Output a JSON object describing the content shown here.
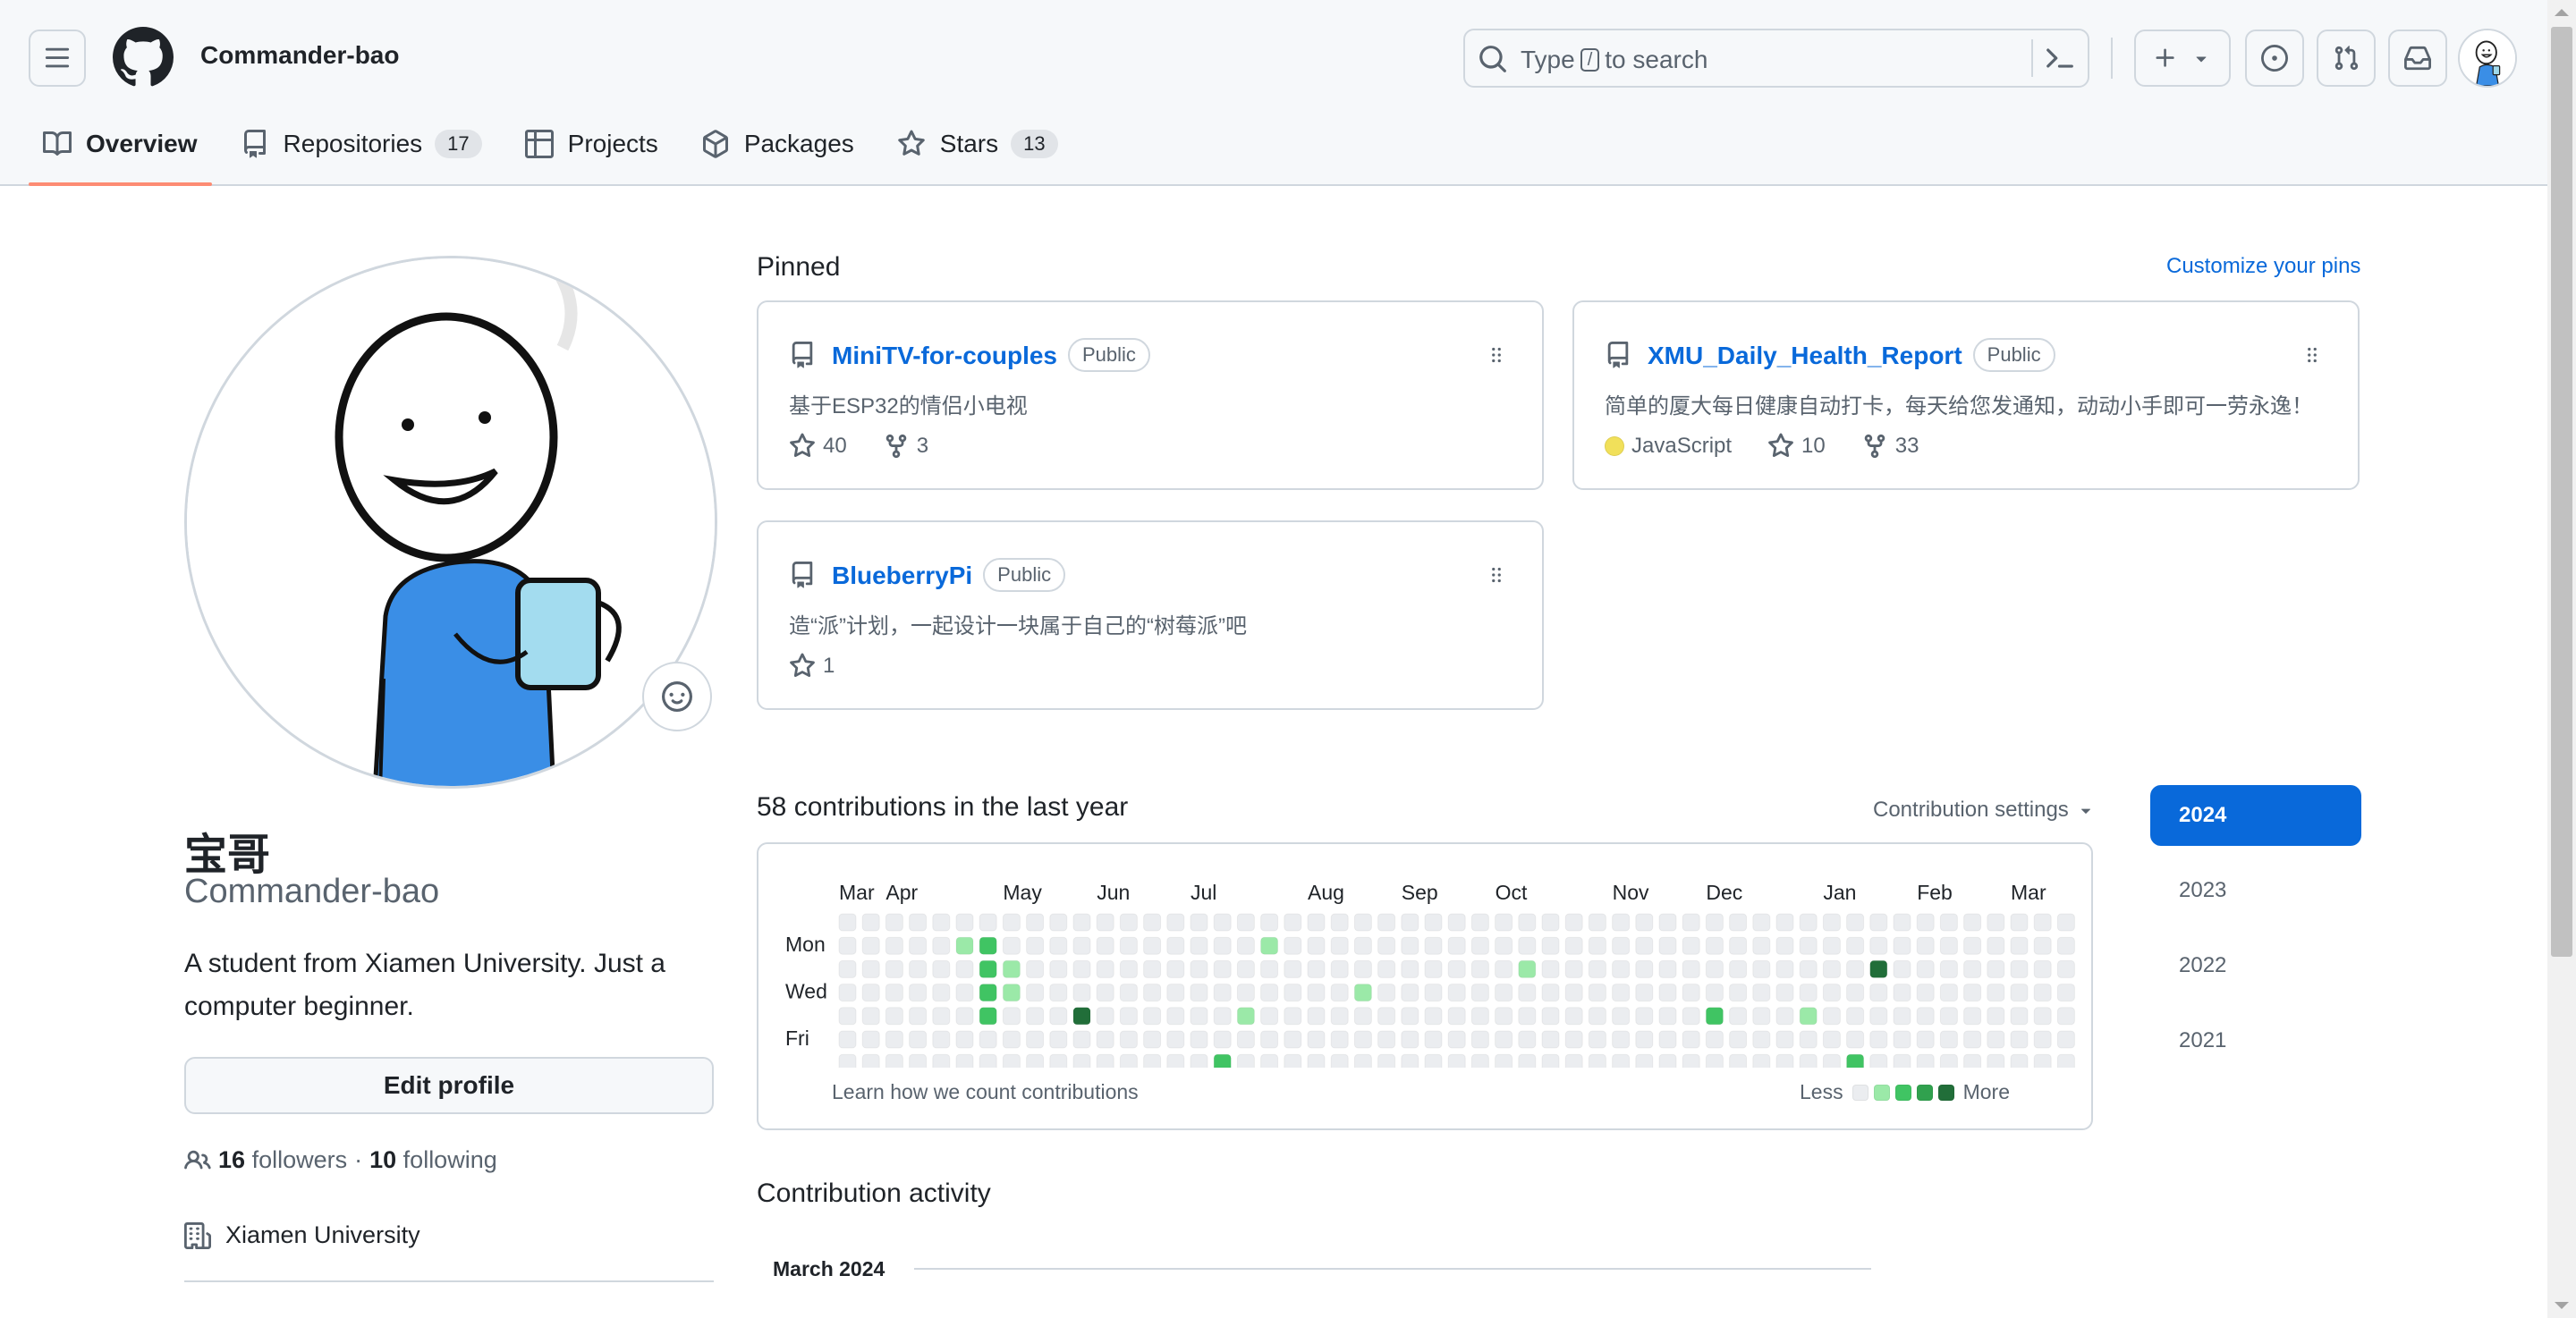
{
  "header": {
    "username": "Commander-bao",
    "search_text_before": "Type",
    "search_key": "/",
    "search_text_after": "to search"
  },
  "tabs": [
    {
      "label": "Overview",
      "icon": "book-icon",
      "count": ""
    },
    {
      "label": "Repositories",
      "icon": "repo-icon",
      "count": "17"
    },
    {
      "label": "Projects",
      "icon": "table-icon",
      "count": ""
    },
    {
      "label": "Packages",
      "icon": "package-icon",
      "count": ""
    },
    {
      "label": "Stars",
      "icon": "star-icon",
      "count": "13"
    }
  ],
  "profile": {
    "name": "宝哥",
    "login": "Commander-bao",
    "bio": "A student from Xiamen University. Just a computer beginner.",
    "edit_label": "Edit profile",
    "followers_count": "16",
    "followers_label": "followers",
    "separator": "·",
    "following_count": "10",
    "following_label": "following",
    "organization": "Xiamen University"
  },
  "pinned": {
    "title": "Pinned",
    "customize_label": "Customize your pins",
    "repos": [
      {
        "name": "MiniTV-for-couples",
        "visibility": "Public",
        "description": "基于ESP32的情侣小电视",
        "language": "",
        "stars": "40",
        "forks": "3"
      },
      {
        "name": "XMU_Daily_Health_Report",
        "visibility": "Public",
        "description": "简单的厦大每日健康自动打卡，每天给您发通知，动动小手即可一劳永逸！",
        "language": "JavaScript",
        "language_color": "#f1e05a",
        "stars": "10",
        "forks": "33"
      },
      {
        "name": "BlueberryPi",
        "visibility": "Public",
        "description": "造“派”计划，一起设计一块属于自己的“树莓派”吧",
        "language": "",
        "stars": "1",
        "forks": ""
      }
    ]
  },
  "contributions": {
    "title": "58 contributions in the last year",
    "settings_label": "Contribution settings",
    "months": [
      "Mar",
      "Apr",
      "May",
      "Jun",
      "Jul",
      "Aug",
      "Sep",
      "Oct",
      "Nov",
      "Dec",
      "Jan",
      "Feb",
      "Mar"
    ],
    "month_weeks": [
      0,
      2,
      7,
      11,
      15,
      20,
      24,
      28,
      33,
      37,
      42,
      46,
      50
    ],
    "day_labels": [
      "Mon",
      "Wed",
      "Fri"
    ],
    "learn_label": "Learn how we count contributions",
    "less_label": "Less",
    "more_label": "More",
    "level_colors": [
      "#ebedf0",
      "#9be9a8",
      "#40c463",
      "#30a14e",
      "#216e39"
    ],
    "cells": [
      [
        5,
        1,
        1
      ],
      [
        6,
        1,
        2
      ],
      [
        6,
        2,
        2
      ],
      [
        6,
        3,
        2
      ],
      [
        6,
        4,
        2
      ],
      [
        7,
        2,
        1
      ],
      [
        7,
        3,
        1
      ],
      [
        10,
        4,
        4
      ],
      [
        16,
        6,
        2
      ],
      [
        17,
        4,
        1
      ],
      [
        18,
        1,
        1
      ],
      [
        22,
        3,
        1
      ],
      [
        29,
        2,
        1
      ],
      [
        37,
        4,
        2
      ],
      [
        41,
        4,
        1
      ],
      [
        43,
        6,
        2
      ],
      [
        44,
        2,
        4
      ]
    ],
    "weeks": 53,
    "years": [
      "2024",
      "2023",
      "2022",
      "2021"
    ],
    "active_year": "2024"
  },
  "activity": {
    "title": "Contribution activity",
    "month": "March 2024"
  }
}
